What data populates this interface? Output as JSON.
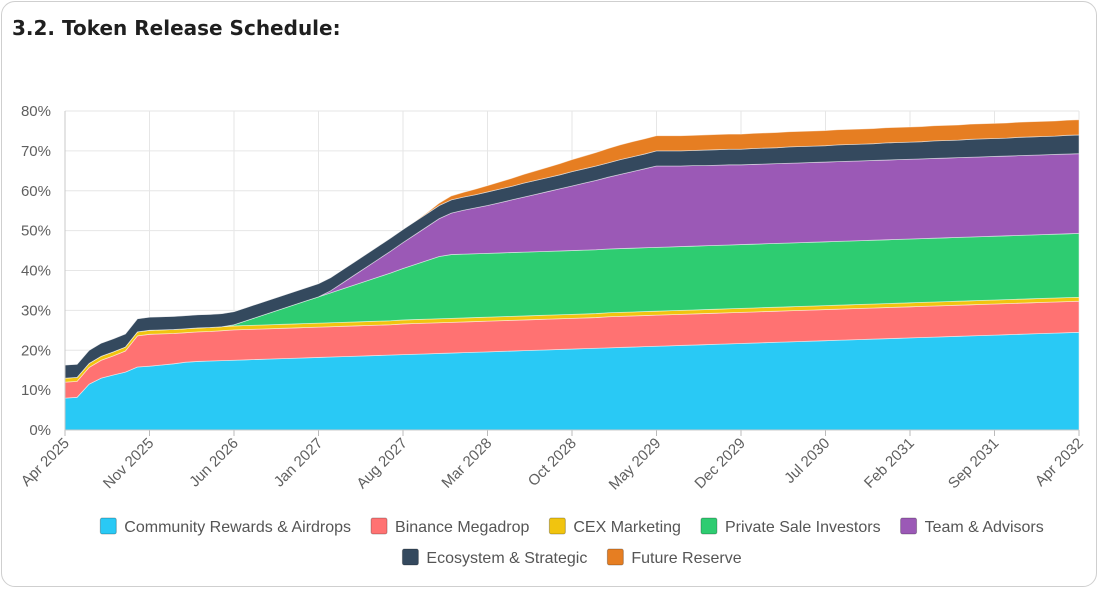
{
  "chart_data": {
    "type": "area",
    "stacked": true,
    "title": "3.2. Token Release Schedule:",
    "x_ticks": [
      "Apr 2025",
      "Nov 2025",
      "Jun 2026",
      "Jan 2027",
      "Aug 2027",
      "Mar 2028",
      "Oct 2028",
      "May 2029",
      "Dec 2029",
      "Jul 2030",
      "Feb 2031",
      "Sep 2031",
      "Apr 2032"
    ],
    "y_ticks": [
      "0%",
      "10%",
      "20%",
      "30%",
      "40%",
      "50%",
      "60%",
      "70%",
      "80%"
    ],
    "ylim": [
      0,
      80
    ],
    "y_unit": "%",
    "x_unit": "months since Apr 2025",
    "x": [
      0,
      1,
      2,
      3,
      4,
      5,
      6,
      7,
      8,
      9,
      10,
      11,
      12,
      13,
      14,
      15,
      16,
      17,
      18,
      19,
      20,
      21,
      22,
      23,
      24,
      25,
      26,
      27,
      28,
      29,
      30,
      31,
      32,
      33,
      34,
      35,
      36,
      37,
      38,
      39,
      40,
      41,
      42,
      43,
      44,
      45,
      46,
      47,
      48,
      49,
      50,
      51,
      52,
      53,
      54,
      55,
      56,
      57,
      58,
      59,
      60,
      61,
      62,
      63,
      64,
      65,
      66,
      67,
      68,
      69,
      70,
      71,
      72,
      73,
      74,
      75,
      76,
      77,
      78,
      79,
      80,
      81,
      82,
      83,
      84
    ],
    "grid": true,
    "legend_position": "bottom",
    "series": [
      {
        "name": "Community Rewards & Airdrops",
        "color": "#29c9f5",
        "values": [
          8.0,
          8.2,
          11.5,
          13.0,
          13.8,
          14.5,
          15.8,
          16.0,
          16.3,
          16.6,
          17.0,
          17.2,
          17.3,
          17.4,
          17.5,
          17.6,
          17.7,
          17.8,
          17.9,
          18.0,
          18.1,
          18.2,
          18.3,
          18.4,
          18.5,
          18.6,
          18.7,
          18.8,
          18.9,
          19.0,
          19.1,
          19.2,
          19.3,
          19.4,
          19.5,
          19.6,
          19.7,
          19.8,
          19.9,
          20.0,
          20.1,
          20.2,
          20.3,
          20.4,
          20.5,
          20.6,
          20.7,
          20.8,
          20.9,
          21.0,
          21.1,
          21.2,
          21.3,
          21.4,
          21.5,
          21.6,
          21.7,
          21.8,
          21.9,
          22.0,
          22.1,
          22.2,
          22.3,
          22.4,
          22.5,
          22.6,
          22.7,
          22.8,
          22.9,
          23.0,
          23.1,
          23.2,
          23.3,
          23.4,
          23.5,
          23.6,
          23.7,
          23.8,
          23.9,
          24.0,
          24.1,
          24.2,
          24.3,
          24.4,
          24.5
        ]
      },
      {
        "name": "Binance Megadrop",
        "color": "#ff7272",
        "values": [
          4.0,
          4.0,
          4.2,
          4.5,
          4.8,
          5.3,
          7.8,
          8.0,
          7.8,
          7.6,
          7.4,
          7.4,
          7.4,
          7.5,
          7.6,
          7.6,
          7.6,
          7.6,
          7.6,
          7.6,
          7.6,
          7.6,
          7.6,
          7.6,
          7.6,
          7.6,
          7.6,
          7.6,
          7.7,
          7.7,
          7.7,
          7.7,
          7.7,
          7.7,
          7.7,
          7.7,
          7.7,
          7.7,
          7.7,
          7.7,
          7.7,
          7.7,
          7.7,
          7.7,
          7.7,
          7.8,
          7.8,
          7.8,
          7.8,
          7.8,
          7.8,
          7.8,
          7.8,
          7.8,
          7.8,
          7.8,
          7.8,
          7.8,
          7.8,
          7.8,
          7.8,
          7.8,
          7.8,
          7.8,
          7.8,
          7.8,
          7.8,
          7.8,
          7.8,
          7.8,
          7.8,
          7.8,
          7.8,
          7.8,
          7.8,
          7.8,
          7.8,
          7.8,
          7.8,
          7.8,
          7.8,
          7.8,
          7.8,
          7.8,
          7.8
        ]
      },
      {
        "name": "CEX Marketing",
        "color": "#f1c40f",
        "values": [
          1.0,
          1.0,
          1.0,
          1.0,
          1.0,
          1.0,
          1.0,
          1.0,
          1.0,
          1.0,
          1.0,
          1.0,
          1.0,
          1.0,
          1.0,
          1.0,
          1.0,
          1.0,
          1.0,
          1.0,
          1.0,
          1.0,
          1.0,
          1.0,
          1.0,
          1.0,
          1.0,
          1.0,
          1.0,
          1.0,
          1.0,
          1.0,
          1.0,
          1.0,
          1.0,
          1.0,
          1.0,
          1.0,
          1.0,
          1.0,
          1.0,
          1.0,
          1.0,
          1.0,
          1.0,
          1.0,
          1.0,
          1.0,
          1.0,
          1.0,
          1.0,
          1.0,
          1.0,
          1.0,
          1.0,
          1.0,
          1.0,
          1.0,
          1.0,
          1.0,
          1.0,
          1.0,
          1.0,
          1.0,
          1.0,
          1.0,
          1.0,
          1.0,
          1.0,
          1.0,
          1.0,
          1.0,
          1.0,
          1.0,
          1.0,
          1.0,
          1.0,
          1.0,
          1.0,
          1.0,
          1.0,
          1.0,
          1.0,
          1.0,
          1.0
        ]
      },
      {
        "name": "Private Sale Investors",
        "color": "#2ecc71",
        "values": [
          0,
          0,
          0,
          0,
          0,
          0,
          0,
          0,
          0,
          0,
          0,
          0,
          0,
          0,
          0.3,
          1.2,
          2.1,
          3.0,
          3.9,
          4.8,
          5.7,
          6.6,
          7.5,
          8.4,
          9.3,
          10.2,
          11.1,
          12.0,
          12.9,
          13.8,
          14.7,
          15.6,
          16.0,
          16.0,
          16.0,
          16.0,
          16.0,
          16.0,
          16.0,
          16.0,
          16.0,
          16.0,
          16.0,
          16.0,
          16.0,
          16.0,
          16.0,
          16.0,
          16.0,
          16.0,
          16.0,
          16.0,
          16.0,
          16.0,
          16.0,
          16.0,
          16.0,
          16.0,
          16.0,
          16.0,
          16.0,
          16.0,
          16.0,
          16.0,
          16.0,
          16.0,
          16.0,
          16.0,
          16.0,
          16.0,
          16.0,
          16.0,
          16.0,
          16.0,
          16.0,
          16.0,
          16.0,
          16.0,
          16.0,
          16.0,
          16.0,
          16.0,
          16.0,
          16.0,
          16.0
        ]
      },
      {
        "name": "Team & Advisors",
        "color": "#9b59b6",
        "values": [
          0,
          0,
          0,
          0,
          0,
          0,
          0,
          0,
          0,
          0,
          0,
          0,
          0,
          0,
          0,
          0,
          0,
          0,
          0,
          0,
          0,
          0,
          0.5,
          1.5,
          2.5,
          3.5,
          4.5,
          5.5,
          6.5,
          7.5,
          8.5,
          9.5,
          10.4,
          11.0,
          11.5,
          12.0,
          12.6,
          13.2,
          13.8,
          14.4,
          15.0,
          15.6,
          16.2,
          16.8,
          17.4,
          18.0,
          18.6,
          19.2,
          19.8,
          20.4,
          20.3,
          20.2,
          20.2,
          20.1,
          20.1,
          20.1,
          20.0,
          20.0,
          20.0,
          20.0,
          20.0,
          20.0,
          20.0,
          20.0,
          20.0,
          20.0,
          20.0,
          20.0,
          20.0,
          20.0,
          20.0,
          20.0,
          20.0,
          20.0,
          20.0,
          20.0,
          20.0,
          20.0,
          20.0,
          20.0,
          20.0,
          20.0,
          20.0,
          20.0,
          20.0
        ]
      },
      {
        "name": "Ecosystem & Strategic",
        "color": "#34495e",
        "values": [
          3.3,
          3.3,
          3.3,
          3.3,
          3.3,
          3.3,
          3.3,
          3.3,
          3.3,
          3.3,
          3.3,
          3.3,
          3.3,
          3.3,
          3.3,
          3.3,
          3.3,
          3.3,
          3.3,
          3.3,
          3.3,
          3.3,
          3.3,
          3.3,
          3.3,
          3.3,
          3.3,
          3.3,
          3.3,
          3.3,
          3.3,
          3.3,
          3.3,
          3.3,
          3.3,
          3.4,
          3.4,
          3.4,
          3.5,
          3.5,
          3.5,
          3.5,
          3.6,
          3.6,
          3.6,
          3.6,
          3.7,
          3.7,
          3.7,
          3.8,
          3.8,
          3.8,
          3.8,
          3.9,
          3.9,
          3.9,
          3.9,
          4.0,
          4.0,
          4.0,
          4.1,
          4.1,
          4.1,
          4.1,
          4.2,
          4.2,
          4.2,
          4.2,
          4.3,
          4.3,
          4.3,
          4.3,
          4.4,
          4.4,
          4.4,
          4.5,
          4.5,
          4.5,
          4.5,
          4.6,
          4.6,
          4.6,
          4.6,
          4.7,
          4.7
        ]
      },
      {
        "name": "Future Reserve",
        "color": "#e67e22",
        "values": [
          0,
          0,
          0,
          0,
          0,
          0,
          0,
          0,
          0,
          0,
          0,
          0,
          0,
          0,
          0,
          0,
          0,
          0,
          0,
          0,
          0,
          0,
          0,
          0,
          0,
          0,
          0,
          0,
          0,
          0,
          0.2,
          0.6,
          1.0,
          1.2,
          1.4,
          1.6,
          1.8,
          2.0,
          2.2,
          2.4,
          2.6,
          2.8,
          3.0,
          3.2,
          3.4,
          3.6,
          3.7,
          3.8,
          3.8,
          3.8,
          3.8,
          3.8,
          3.8,
          3.8,
          3.8,
          3.8,
          3.8,
          3.8,
          3.8,
          3.8,
          3.8,
          3.8,
          3.8,
          3.8,
          3.8,
          3.8,
          3.8,
          3.8,
          3.8,
          3.8,
          3.8,
          3.8,
          3.8,
          3.8,
          3.8,
          3.8,
          3.8,
          3.8,
          3.8,
          3.8,
          3.8,
          3.8,
          3.8,
          3.8,
          3.8
        ]
      }
    ]
  }
}
